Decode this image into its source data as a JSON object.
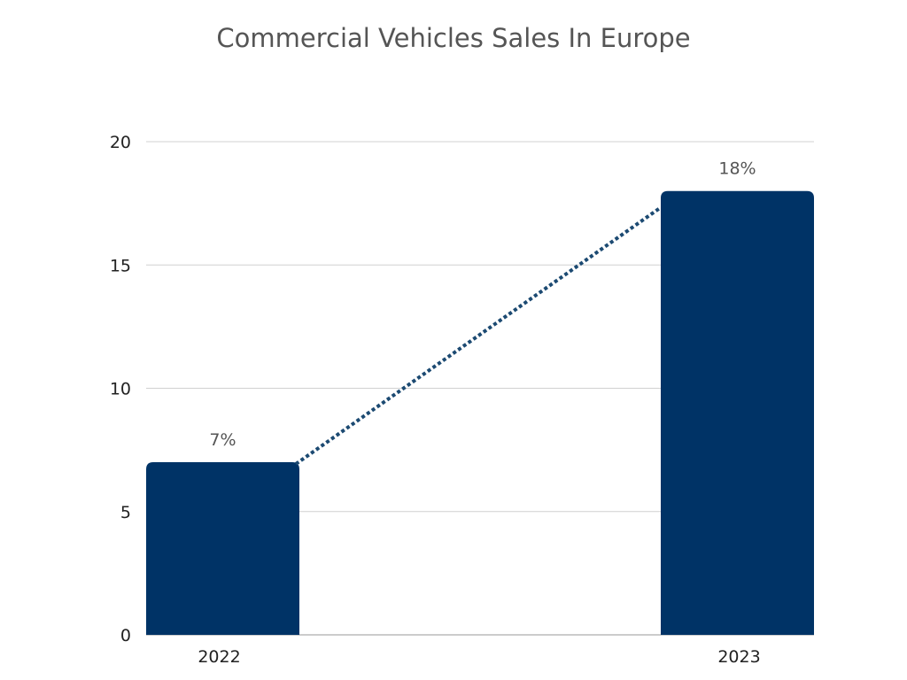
{
  "chart_data": {
    "type": "bar",
    "title": "Commercial Vehicles Sales In Europe",
    "categories": [
      "2022",
      "2023"
    ],
    "values": [
      7,
      18
    ],
    "data_labels": [
      "7%",
      "18%"
    ],
    "xlabel": "",
    "ylabel": "",
    "ylim": [
      0,
      20
    ],
    "yticks": [
      "0",
      "5",
      "10",
      "15",
      "20"
    ],
    "grid": true,
    "legend": "none",
    "trend_line": "dotted, connecting bar tops",
    "colors": {
      "bar": "#003366",
      "trend_line": "#1c4a72",
      "grid": "#d0d0d0"
    }
  }
}
